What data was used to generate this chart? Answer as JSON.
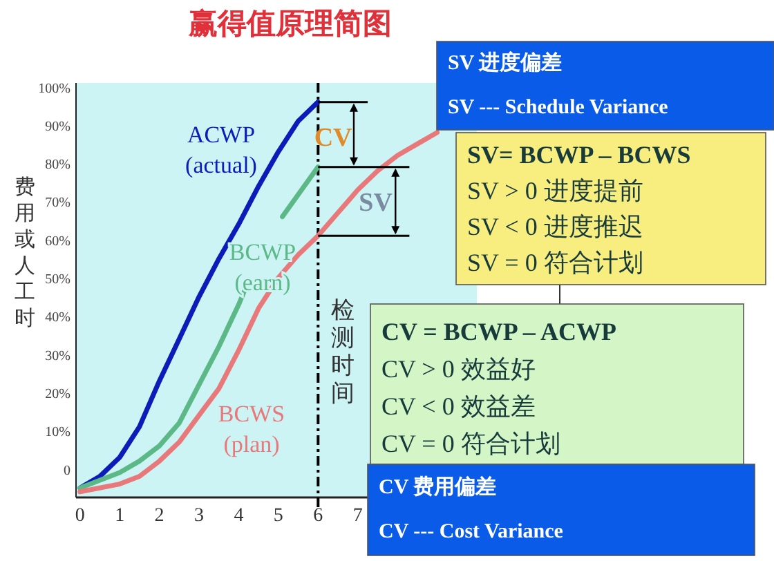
{
  "chart_data": {
    "type": "line",
    "title": "赢得值原理简图",
    "ylabel": "费用或人工时",
    "xlim": [
      -0.1,
      10
    ],
    "ylim": [
      -7.5,
      101
    ],
    "xticks": [
      0,
      1,
      2,
      3,
      4,
      5,
      6,
      7
    ],
    "yticks": [
      0,
      {
        "value": 10,
        "label": "10%"
      },
      {
        "value": 20,
        "label": "20%"
      },
      {
        "value": 30,
        "label": "30%"
      },
      {
        "value": 40,
        "label": "40%"
      },
      {
        "value": 50,
        "label": "50%"
      },
      {
        "value": 60,
        "label": "60%"
      },
      {
        "value": 70,
        "label": "70%"
      },
      {
        "value": 80,
        "label": "80%"
      },
      {
        "value": 90,
        "label": "90%"
      },
      {
        "value": 100,
        "label": "100%"
      }
    ],
    "grid": false,
    "legend": false,
    "marker": "none",
    "series": [
      {
        "name": "ACWP (actual)",
        "color": "#0c1cb8",
        "x": [
          0,
          0.5,
          1,
          1.5,
          2,
          2.5,
          3,
          3.5,
          4,
          4.5,
          5,
          5.5,
          6
        ],
        "values": [
          -5,
          -2,
          3,
          11,
          23,
          34,
          45,
          55,
          64,
          74,
          83,
          91,
          96
        ]
      },
      {
        "name": "BCWP (earn)",
        "color": "#5cb887",
        "x": [
          0,
          1,
          1.5,
          2,
          2.5,
          3,
          3.5,
          4,
          4.2,
          4.65,
          5.1,
          6
        ],
        "values": [
          -5,
          -1,
          2,
          6,
          12,
          22,
          32,
          43,
          48,
          null,
          66,
          79
        ]
      },
      {
        "name": "BCWS (plan)",
        "color": "#e8787a",
        "x": [
          0,
          1,
          1.5,
          2,
          2.5,
          3,
          3.5,
          4,
          4.5,
          5,
          5.5,
          6,
          6.5,
          7,
          7.5,
          8,
          8.5,
          9
        ],
        "values": [
          -6,
          -4,
          -2,
          2,
          7,
          14,
          21,
          31,
          42,
          50,
          56,
          61,
          67,
          73,
          78,
          82,
          85,
          88
        ]
      }
    ],
    "ref_lines": [
      {
        "axis": "x",
        "value": 6,
        "label": "检测时间",
        "line_style": "dashdot"
      }
    ],
    "annotations": [
      {
        "text": "CV",
        "x": 6,
        "y": 96
      },
      {
        "text": "SV",
        "x": 6,
        "y": 79
      },
      "SV 进度偏差\nSV --- Schedule Variance",
      "SV= BCWP – BCWS\nSV > 0 进度提前\nSV < 0 进度推迟\nSV = 0 符合计划",
      "CV = BCWP – ACWP\nCV > 0 效益好\nCV < 0 效益差\nCV = 0 符合计划",
      "CV 费用偏差\nCV --- Cost Variance"
    ]
  }
}
